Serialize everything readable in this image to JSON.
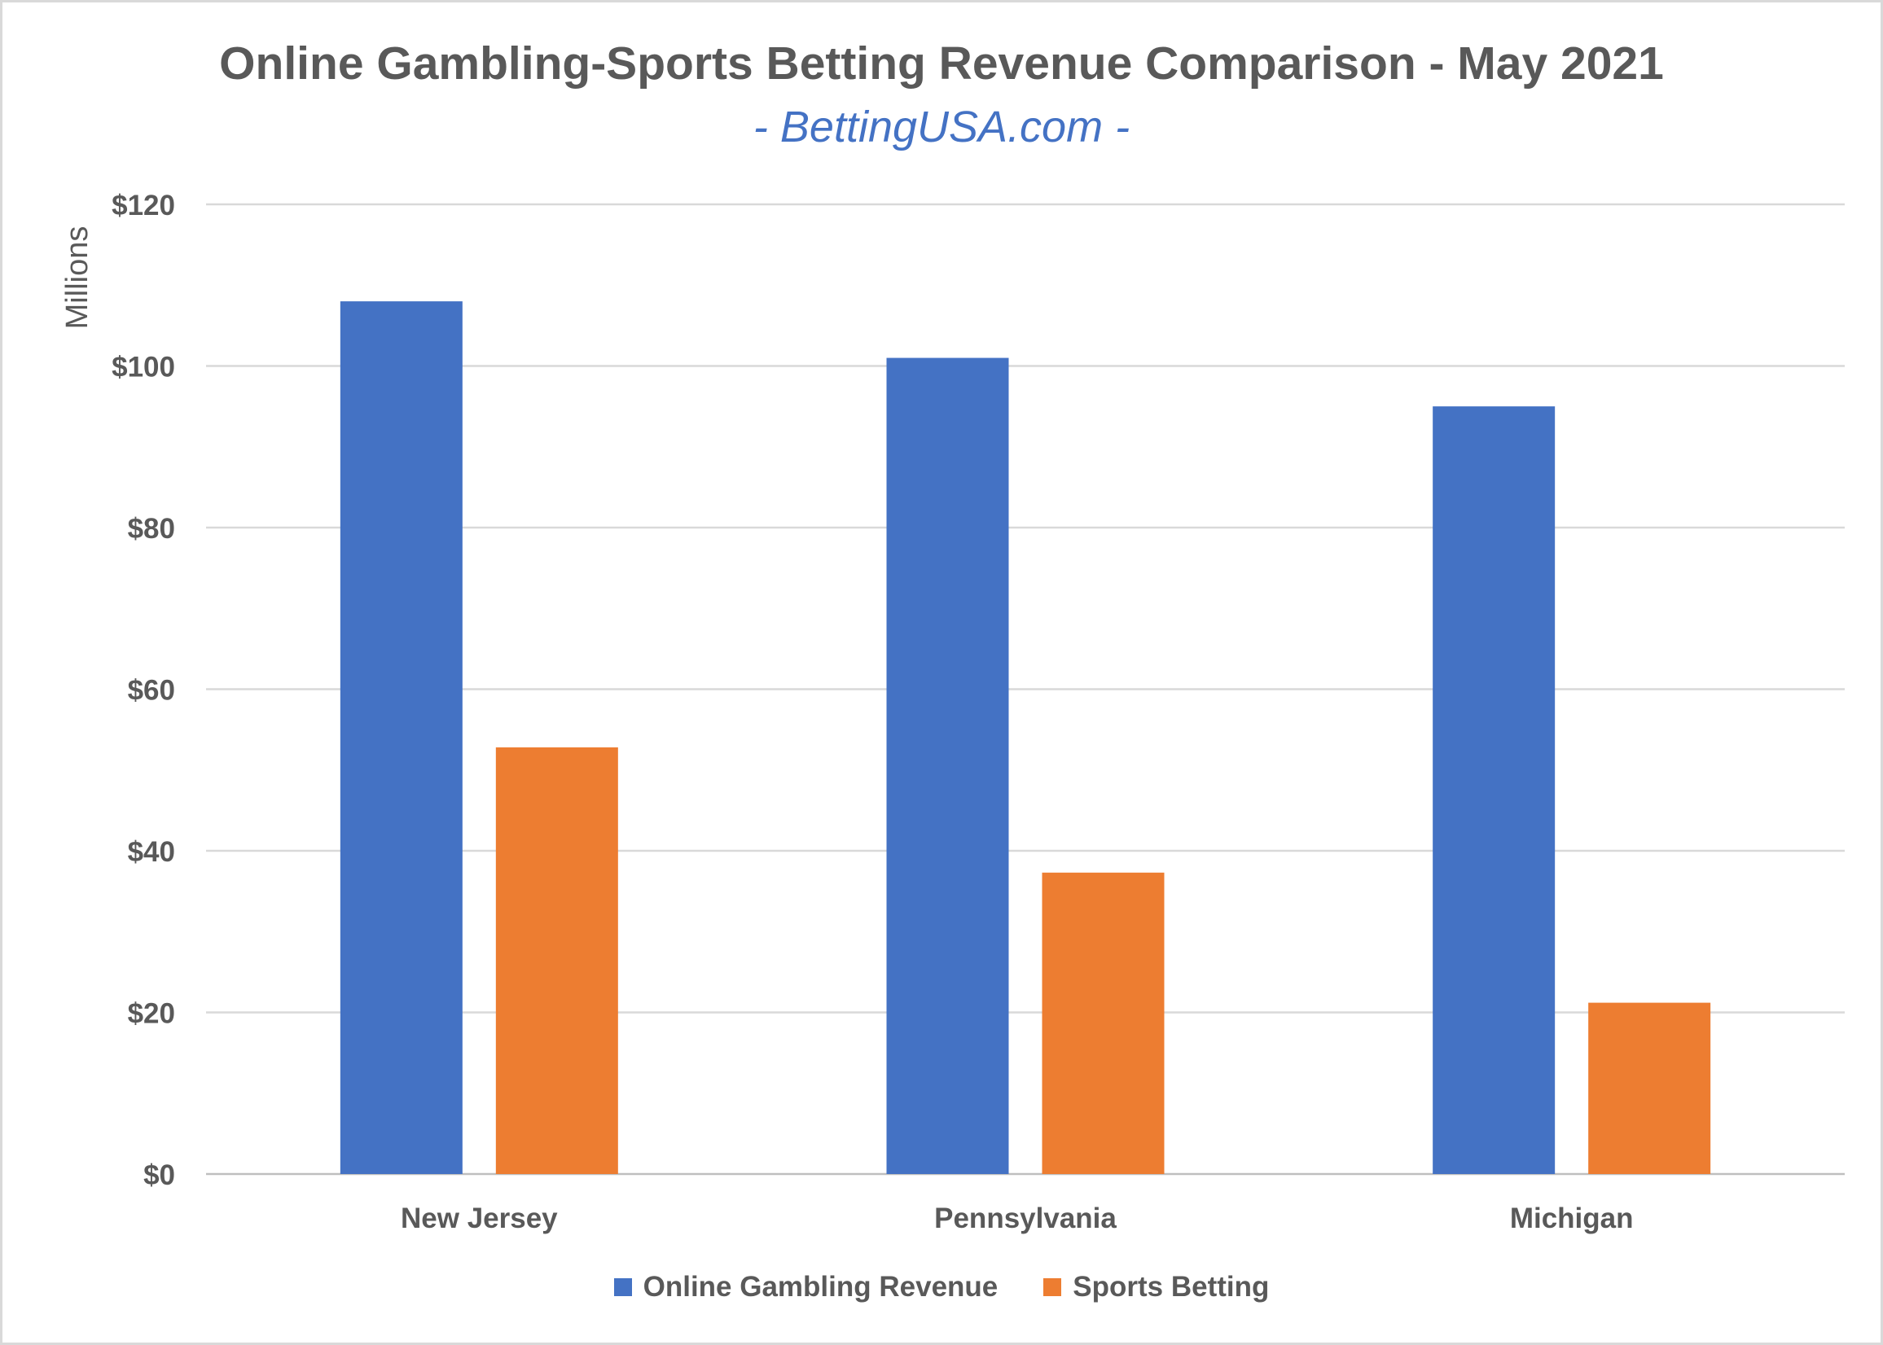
{
  "chart_data": {
    "type": "bar",
    "title": "Online Gambling-Sports Betting Revenue Comparison - May 2021",
    "subtitle": "- BettingUSA.com -",
    "ylabel": "Millions",
    "xlabel": "",
    "categories": [
      "New Jersey",
      "Pennsylvania",
      "Michigan"
    ],
    "series": [
      {
        "name": "Online Gambling Revenue",
        "color": "#4472c4",
        "values": [
          108,
          101,
          95
        ]
      },
      {
        "name": "Sports Betting",
        "color": "#ed7d31",
        "values": [
          52.8,
          37.3,
          21.2
        ]
      }
    ],
    "ylim": [
      0,
      120
    ],
    "yticks": [
      0,
      20,
      40,
      60,
      80,
      100,
      120
    ],
    "ytick_labels": [
      "$0",
      "$20",
      "$40",
      "$60",
      "$80",
      "$100",
      "$120"
    ],
    "grid": true,
    "legend_position": "bottom"
  }
}
